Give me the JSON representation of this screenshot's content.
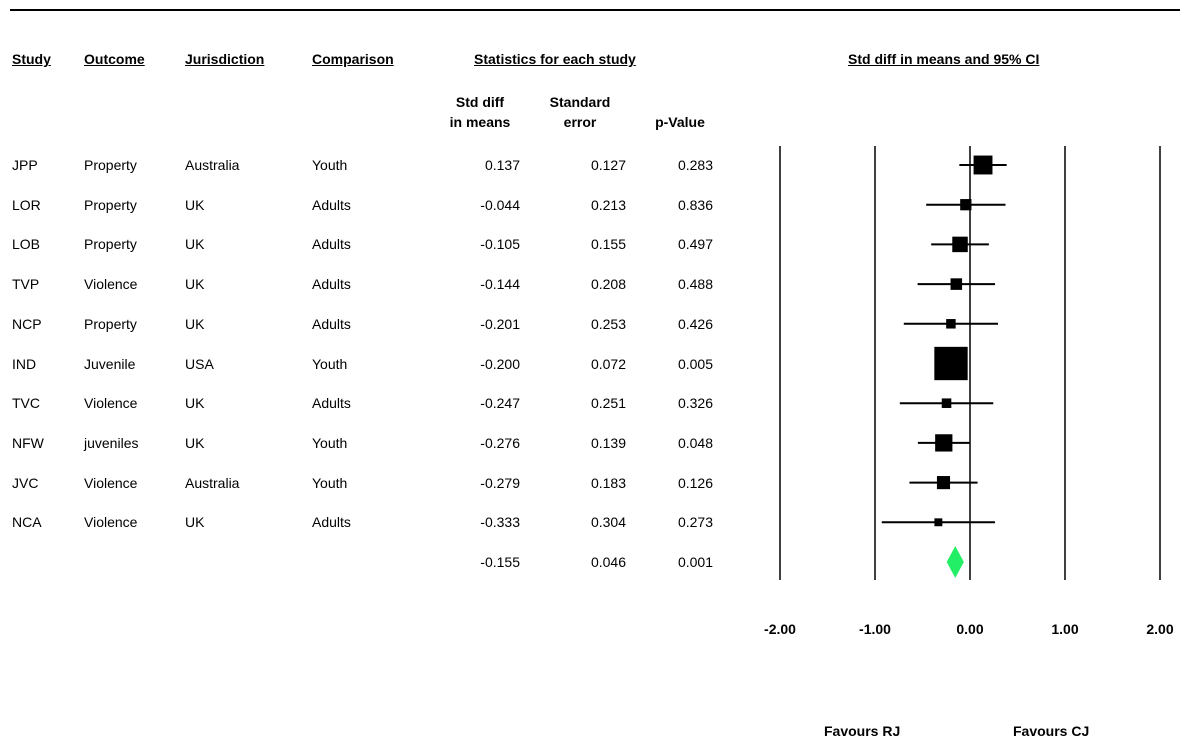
{
  "headers": {
    "study": "Study",
    "outcome": "Outcome",
    "jurisdiction": "Jurisdiction",
    "comparison": "Comparison",
    "statistics": "Statistics for each study",
    "plot_title": "Std diff in means and 95% CI",
    "std_diff": "Std diff\nin means",
    "std_error": "Standard\nerror",
    "p_value": "p-Value"
  },
  "rows": [
    {
      "study": "JPP",
      "outcome": "Property",
      "jurisdiction": "Australia",
      "comparison": "Youth",
      "std_diff": "0.137",
      "std_error": "0.127",
      "p_value": "0.283"
    },
    {
      "study": "LOR",
      "outcome": "Property",
      "jurisdiction": "UK",
      "comparison": "Adults",
      "std_diff": "-0.044",
      "std_error": "0.213",
      "p_value": "0.836"
    },
    {
      "study": "LOB",
      "outcome": "Property",
      "jurisdiction": "UK",
      "comparison": "Adults",
      "std_diff": "-0.105",
      "std_error": "0.155",
      "p_value": "0.497"
    },
    {
      "study": "TVP",
      "outcome": "Violence",
      "jurisdiction": "UK",
      "comparison": "Adults",
      "std_diff": "-0.144",
      "std_error": "0.208",
      "p_value": "0.488"
    },
    {
      "study": "NCP",
      "outcome": "Property",
      "jurisdiction": "UK",
      "comparison": "Adults",
      "std_diff": "-0.201",
      "std_error": "0.253",
      "p_value": "0.426"
    },
    {
      "study": "IND",
      "outcome": "Juvenile",
      "jurisdiction": "USA",
      "comparison": "Youth",
      "std_diff": "-0.200",
      "std_error": "0.072",
      "p_value": "0.005"
    },
    {
      "study": "TVC",
      "outcome": "Violence",
      "jurisdiction": "UK",
      "comparison": "Adults",
      "std_diff": "-0.247",
      "std_error": "0.251",
      "p_value": "0.326"
    },
    {
      "study": "NFW",
      "outcome": "juveniles",
      "jurisdiction": "UK",
      "comparison": "Youth",
      "std_diff": "-0.276",
      "std_error": "0.139",
      "p_value": "0.048"
    },
    {
      "study": "JVC",
      "outcome": "Violence",
      "jurisdiction": "Australia",
      "comparison": "Youth",
      "std_diff": "-0.279",
      "std_error": "0.183",
      "p_value": "0.126"
    },
    {
      "study": "NCA",
      "outcome": "Violence",
      "jurisdiction": "UK",
      "comparison": "Adults",
      "std_diff": "-0.333",
      "std_error": "0.304",
      "p_value": "0.273"
    }
  ],
  "summary": {
    "std_diff": "-0.155",
    "std_error": "0.046",
    "p_value": "0.001"
  },
  "axis": {
    "ticks": [
      "-2.00",
      "-1.00",
      "0.00",
      "1.00",
      "2.00"
    ]
  },
  "favours": {
    "left": "Favours RJ",
    "right": "Favours CJ"
  },
  "colors": {
    "summary_diamond": "#22ee66",
    "marker": "#000000"
  },
  "chart_data": {
    "type": "forest",
    "xlim": [
      -2,
      2
    ],
    "gridlines": [
      -2,
      -1,
      0,
      1,
      2
    ],
    "studies": [
      {
        "label": "JPP",
        "estimate": 0.137,
        "se": 0.127
      },
      {
        "label": "LOR",
        "estimate": -0.044,
        "se": 0.213
      },
      {
        "label": "LOB",
        "estimate": -0.105,
        "se": 0.155
      },
      {
        "label": "TVP",
        "estimate": -0.144,
        "se": 0.208
      },
      {
        "label": "NCP",
        "estimate": -0.201,
        "se": 0.253
      },
      {
        "label": "IND",
        "estimate": -0.2,
        "se": 0.072
      },
      {
        "label": "TVC",
        "estimate": -0.247,
        "se": 0.251
      },
      {
        "label": "NFW",
        "estimate": -0.276,
        "se": 0.139
      },
      {
        "label": "JVC",
        "estimate": -0.279,
        "se": 0.183
      },
      {
        "label": "NCA",
        "estimate": -0.333,
        "se": 0.304
      }
    ],
    "summary": {
      "estimate": -0.155,
      "se": 0.046
    }
  }
}
